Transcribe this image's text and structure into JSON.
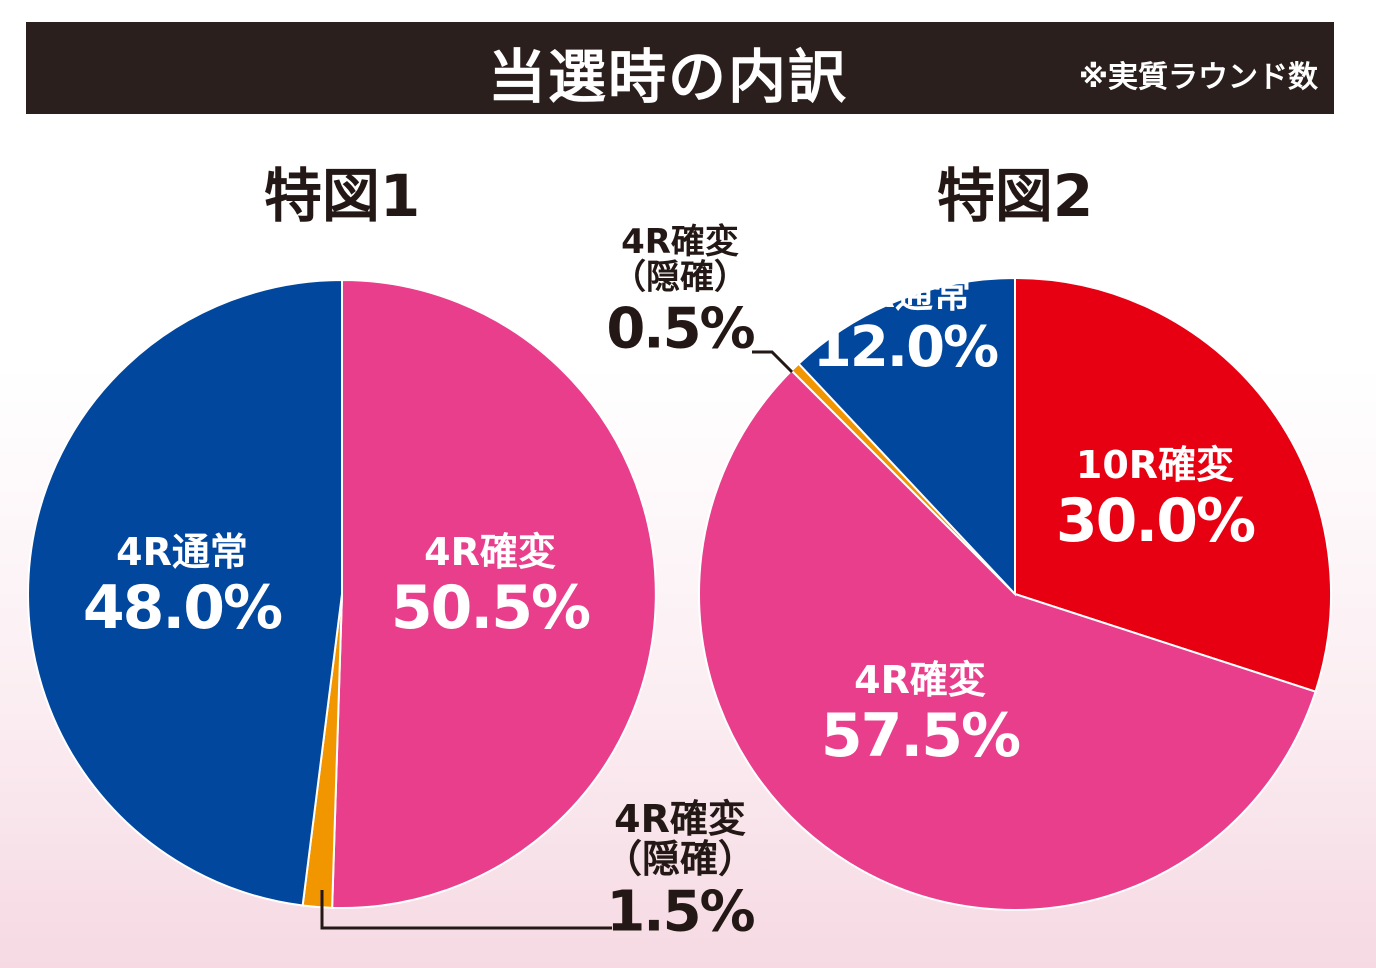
{
  "header": {
    "title": "当選時の内訳",
    "note": "※実質ラウンド数"
  },
  "chart_data": [
    {
      "type": "pie",
      "title": "特図1",
      "slices": [
        {
          "label": "4R確変",
          "value": 50.5,
          "value_label": "50.5%",
          "color": "#e83e8c",
          "text_color": "#ffffff"
        },
        {
          "label": "4R確変\n（隠確）",
          "value": 1.5,
          "value_label": "1.5%",
          "color": "#f29600",
          "text_color": "#231815"
        },
        {
          "label": "4R通常",
          "value": 48.0,
          "value_label": "48.0%",
          "color": "#00479d",
          "text_color": "#ffffff"
        }
      ]
    },
    {
      "type": "pie",
      "title": "特図2",
      "slices": [
        {
          "label": "10R確変",
          "value": 30.0,
          "value_label": "30.0%",
          "color": "#e60012",
          "text_color": "#ffffff"
        },
        {
          "label": "4R確変",
          "value": 57.5,
          "value_label": "57.5%",
          "color": "#e83e8c",
          "text_color": "#ffffff"
        },
        {
          "label": "4R確変\n（隠確）",
          "value": 0.5,
          "value_label": "0.5%",
          "color": "#f29600",
          "text_color": "#231815"
        },
        {
          "label": "4R通常",
          "value": 12.0,
          "value_label": "12.0%",
          "color": "#00479d",
          "text_color": "#ffffff"
        }
      ]
    }
  ]
}
